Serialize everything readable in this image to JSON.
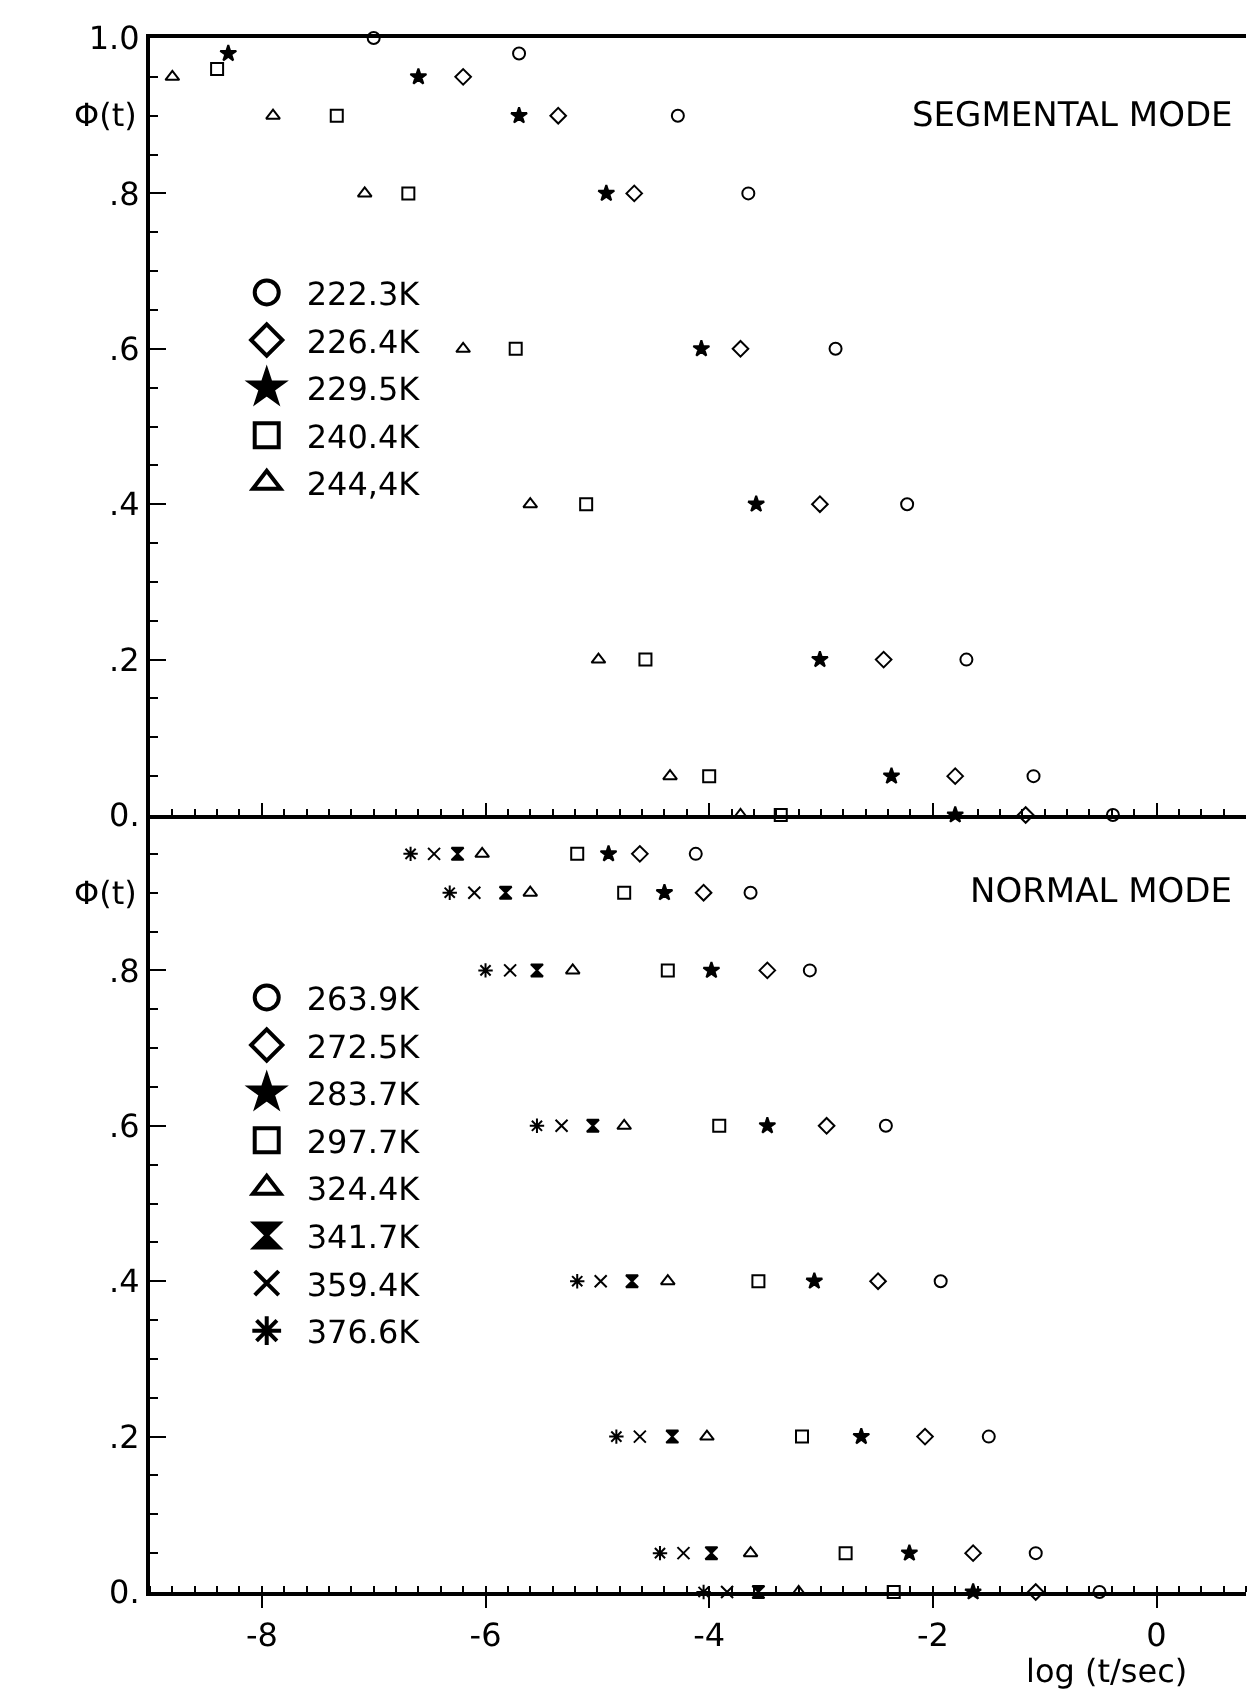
{
  "chart_data": [
    {
      "type": "scatter",
      "title": "SEGMENTAL MODE",
      "ylabel": "Φ(t)",
      "xlim": [
        -9,
        0.8
      ],
      "xticks": [
        -8,
        -6,
        -4,
        -2,
        0
      ],
      "ylim": [
        0,
        1
      ],
      "yticks": [
        {
          "value": 0,
          "label": "0."
        },
        {
          "value": 0.2,
          "label": ".2"
        },
        {
          "value": 0.4,
          "label": ".4"
        },
        {
          "value": 0.6,
          "label": ".6"
        },
        {
          "value": 0.8,
          "label": ".8"
        },
        {
          "value": 1.0,
          "label": "1.0"
        }
      ],
      "tick_labels": "y",
      "legend": "left",
      "grid": false,
      "series": [
        {
          "name": "222.3K",
          "marker": "circle",
          "color": "#000000",
          "x": [
            -7,
            -5.7,
            -4.28,
            -3.65,
            -2.87,
            -2.23,
            -1.7,
            -1.1,
            -0.39
          ],
          "values": [
            1.0,
            0.98,
            0.9,
            0.8,
            0.6,
            0.4,
            0.2,
            0.05,
            0
          ]
        },
        {
          "name": "226.4K",
          "marker": "diamond",
          "color": "#000000",
          "x": [
            -6.2,
            -5.35,
            -4.67,
            -3.72,
            -3.01,
            -2.44,
            -1.8,
            -1.17
          ],
          "values": [
            0.95,
            0.9,
            0.8,
            0.6,
            0.4,
            0.2,
            0.05,
            0
          ]
        },
        {
          "name": "229.5K",
          "marker": "star",
          "color": "#000000",
          "x": [
            -8.3,
            -6.6,
            -5.7,
            -4.92,
            -4.07,
            -3.58,
            -3.01,
            -2.37,
            -1.8
          ],
          "values": [
            0.98,
            0.95,
            0.9,
            0.8,
            0.6,
            0.4,
            0.2,
            0.05,
            0
          ]
        },
        {
          "name": "240.4K",
          "marker": "square",
          "color": "#000000",
          "x": [
            -8.4,
            -7.33,
            -6.69,
            -5.73,
            -5.1,
            -4.57,
            -4.0,
            -3.36
          ],
          "values": [
            0.96,
            0.9,
            0.8,
            0.6,
            0.4,
            0.2,
            0.05,
            0
          ]
        },
        {
          "name": "244,4K",
          "marker": "triangle",
          "color": "#000000",
          "x": [
            -8.8,
            -7.9,
            -7.08,
            -6.2,
            -5.6,
            -4.99,
            -4.35,
            -3.72
          ],
          "values": [
            0.95,
            0.9,
            0.8,
            0.6,
            0.4,
            0.2,
            0.05,
            0
          ]
        }
      ]
    },
    {
      "type": "scatter",
      "title": "NORMAL MODE",
      "ylabel": "Φ(t)",
      "xlabel": "log (t/sec)",
      "xlim": [
        -9,
        0.8
      ],
      "xticks": [
        -8,
        -6,
        -4,
        -2,
        0
      ],
      "ylim": [
        0,
        1
      ],
      "yticks": [
        {
          "value": 0,
          "label": "0."
        },
        {
          "value": 0.2,
          "label": ".2"
        },
        {
          "value": 0.4,
          "label": ".4"
        },
        {
          "value": 0.6,
          "label": ".6"
        },
        {
          "value": 0.8,
          "label": ".8"
        }
      ],
      "legend": "left",
      "grid": false,
      "series": [
        {
          "name": "263.9K",
          "marker": "circle",
          "color": "#000000",
          "x": [
            -4.12,
            -3.63,
            -3.1,
            -2.42,
            -1.93,
            -1.5,
            -1.08,
            -0.51
          ],
          "values": [
            0.95,
            0.9,
            0.8,
            0.6,
            0.4,
            0.2,
            0.05,
            0
          ]
        },
        {
          "name": "272.5K",
          "marker": "diamond",
          "color": "#000000",
          "x": [
            -4.62,
            -4.05,
            -3.48,
            -2.95,
            -2.49,
            -2.07,
            -1.64,
            -1.08
          ],
          "values": [
            0.95,
            0.9,
            0.8,
            0.6,
            0.4,
            0.2,
            0.05,
            0
          ]
        },
        {
          "name": "283.7K",
          "marker": "star",
          "color": "#000000",
          "x": [
            -4.9,
            -4.4,
            -3.98,
            -3.48,
            -3.06,
            -2.64,
            -2.21,
            -1.64
          ],
          "values": [
            0.95,
            0.9,
            0.8,
            0.6,
            0.4,
            0.2,
            0.05,
            0
          ]
        },
        {
          "name": "297.7K",
          "marker": "square",
          "color": "#000000",
          "x": [
            -5.18,
            -4.76,
            -4.37,
            -3.91,
            -3.56,
            -3.17,
            -2.78,
            -2.35
          ],
          "values": [
            0.95,
            0.9,
            0.8,
            0.6,
            0.4,
            0.2,
            0.05,
            0
          ]
        },
        {
          "name": "324.4K",
          "marker": "triangle",
          "color": "#000000",
          "x": [
            -6.03,
            -5.6,
            -5.22,
            -4.76,
            -4.37,
            -4.02,
            -3.63,
            -3.2
          ],
          "values": [
            0.95,
            0.9,
            0.8,
            0.6,
            0.4,
            0.2,
            0.05,
            0
          ]
        },
        {
          "name": "341.7K",
          "color": "#000000",
          "x": [
            -6.25,
            -5.82,
            -5.54,
            -5.04,
            -4.69,
            -4.33,
            -3.98,
            -3.56
          ],
          "values": [
            0.95,
            0.9,
            0.8,
            0.6,
            0.4,
            0.2,
            0.05,
            0
          ]
        },
        {
          "name": "359.4K",
          "marker": "cross",
          "color": "#000000",
          "x": [
            -6.46,
            -6.1,
            -5.78,
            -5.32,
            -4.97,
            -4.62,
            -4.23,
            -3.84
          ],
          "values": [
            0.95,
            0.9,
            0.8,
            0.6,
            0.4,
            0.2,
            0.05,
            0
          ]
        },
        {
          "name": "376.6K",
          "color": "#000000",
          "x": [
            -6.67,
            -6.32,
            -6.0,
            -5.54,
            -5.18,
            -4.83,
            -4.44,
            -4.05
          ],
          "values": [
            0.95,
            0.9,
            0.8,
            0.6,
            0.4,
            0.2,
            0.05,
            0
          ]
        }
      ]
    }
  ]
}
